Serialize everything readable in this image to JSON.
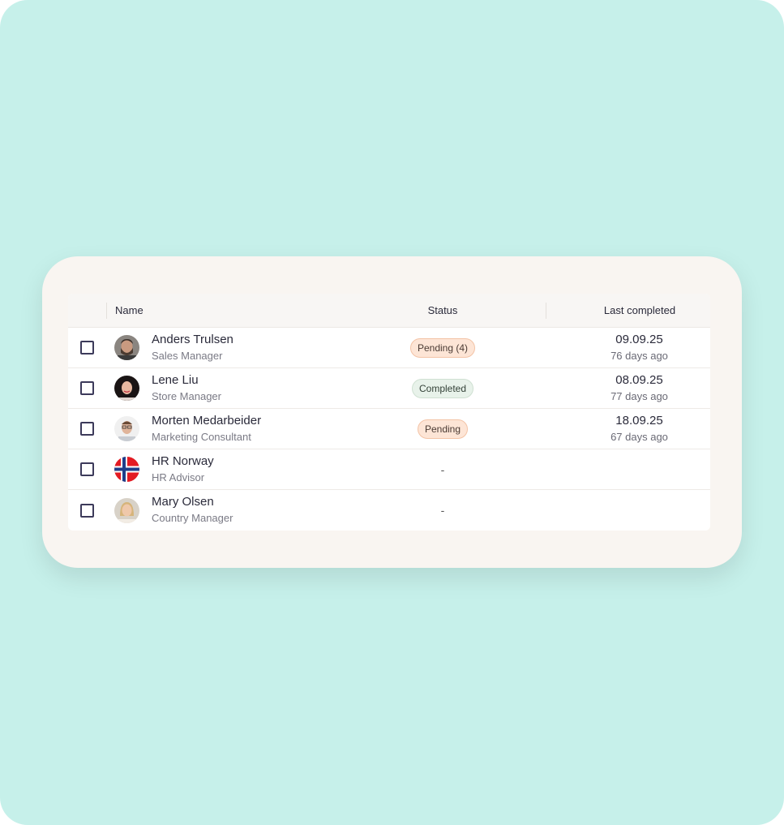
{
  "table": {
    "headers": {
      "name": "Name",
      "status": "Status",
      "last_completed": "Last completed"
    },
    "rows": [
      {
        "name": "Anders Trulsen",
        "role": "Sales Manager",
        "status": "Pending (4)",
        "status_type": "pending",
        "date": "09.09.25",
        "ago": "76 days ago",
        "avatar": "person-photo"
      },
      {
        "name": "Lene Liu",
        "role": "Store Manager",
        "status": "Completed",
        "status_type": "completed",
        "date": "08.09.25",
        "ago": "77 days ago",
        "avatar": "person-photo"
      },
      {
        "name": "Morten Medarbeider",
        "role": "Marketing Consultant",
        "status": "Pending",
        "status_type": "pending",
        "date": "18.09.25",
        "ago": "67 days ago",
        "avatar": "person-photo"
      },
      {
        "name": "HR Norway",
        "role": "HR Advisor",
        "status": "-",
        "status_type": "none",
        "date": "",
        "ago": "",
        "avatar": "norway-flag"
      },
      {
        "name": "Mary Olsen",
        "role": "Country Manager",
        "status": "-",
        "status_type": "none",
        "date": "",
        "ago": "",
        "avatar": "person-photo"
      }
    ]
  },
  "colors": {
    "background": "#c6f0ea",
    "card": "#f9f5f1",
    "pending_badge": "#fde5d6",
    "completed_badge": "#e8f2ea"
  }
}
